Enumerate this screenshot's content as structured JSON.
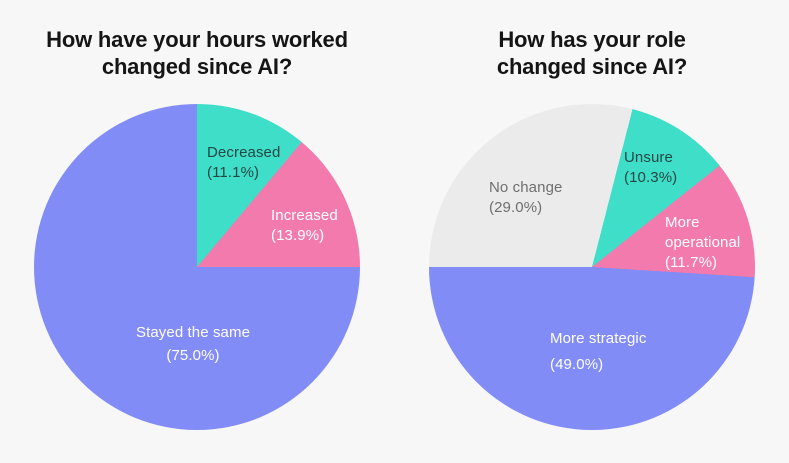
{
  "page": {
    "background_color": "#f7f7f7"
  },
  "chart_data": [
    {
      "type": "pie",
      "title": "How have your hours worked changed since AI?",
      "title_lines": [
        "How have your hours worked",
        "changed since AI?"
      ],
      "legend": "none",
      "labels_position": "inside",
      "start_angle_deg": 0,
      "direction": "clockwise",
      "slices": [
        {
          "label": "Decreased",
          "value": 11.1,
          "display": "(11.1%)",
          "color": "#3fdec9",
          "text_color": "#254744"
        },
        {
          "label": "Increased",
          "value": 13.9,
          "display": "(13.9%)",
          "color": "#f37aad",
          "text_color": "#ffffff"
        },
        {
          "label": "Stayed the same",
          "value": 75.0,
          "display": "(75.0%)",
          "color": "#828cf6",
          "text_color": "#ffffff"
        }
      ]
    },
    {
      "type": "pie",
      "title": "How has your role changed since AI?",
      "title_lines": [
        "How has your role",
        "changed since AI?"
      ],
      "legend": "none",
      "labels_position": "inside",
      "start_angle_deg": 14.4,
      "direction": "clockwise",
      "slices": [
        {
          "label": "Unsure",
          "value": 10.3,
          "display": "(10.3%)",
          "color": "#3fdec9",
          "text_color": "#254744"
        },
        {
          "label": "More operational",
          "value": 11.7,
          "display": "(11.7%)",
          "color": "#f37aad",
          "text_color": "#ffffff"
        },
        {
          "label": "More strategic",
          "value": 49.0,
          "display": "(49.0%)",
          "color": "#828cf6",
          "text_color": "#ffffff"
        },
        {
          "label": "No change",
          "value": 29.0,
          "display": "(29.0%)",
          "color": "#ebebeb",
          "text_color": "#6f6f6f"
        }
      ]
    }
  ]
}
